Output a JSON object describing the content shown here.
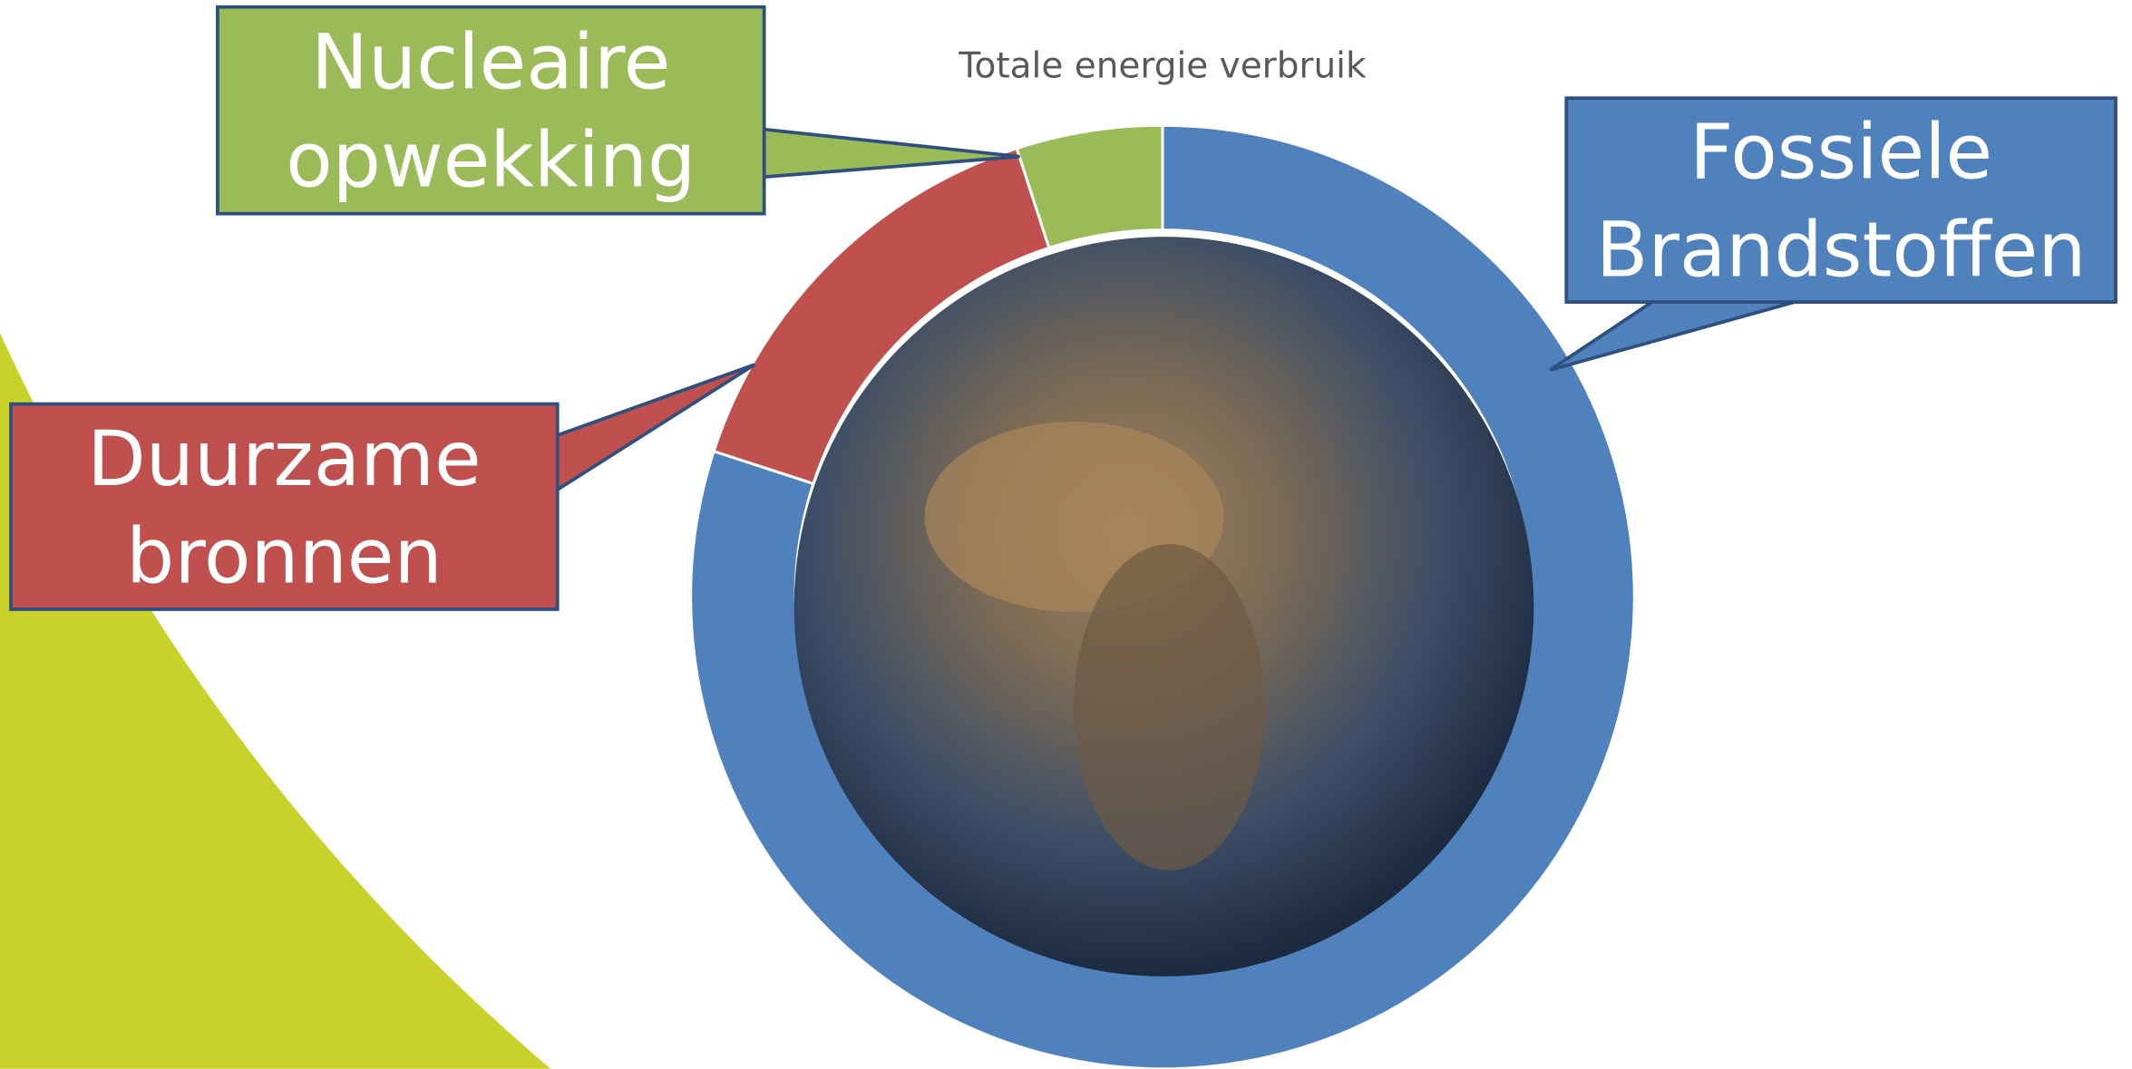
{
  "chart_data": {
    "type": "doughnut",
    "title": "Totale energie verbruik",
    "categories": [
      "Fossiele Brandstoffen",
      "Duurzame bronnen",
      "Nucleaire opwekking"
    ],
    "values": [
      80,
      15,
      5
    ],
    "colors": [
      "#4f81bd",
      "#c0504d",
      "#9bbb59"
    ]
  }
}
